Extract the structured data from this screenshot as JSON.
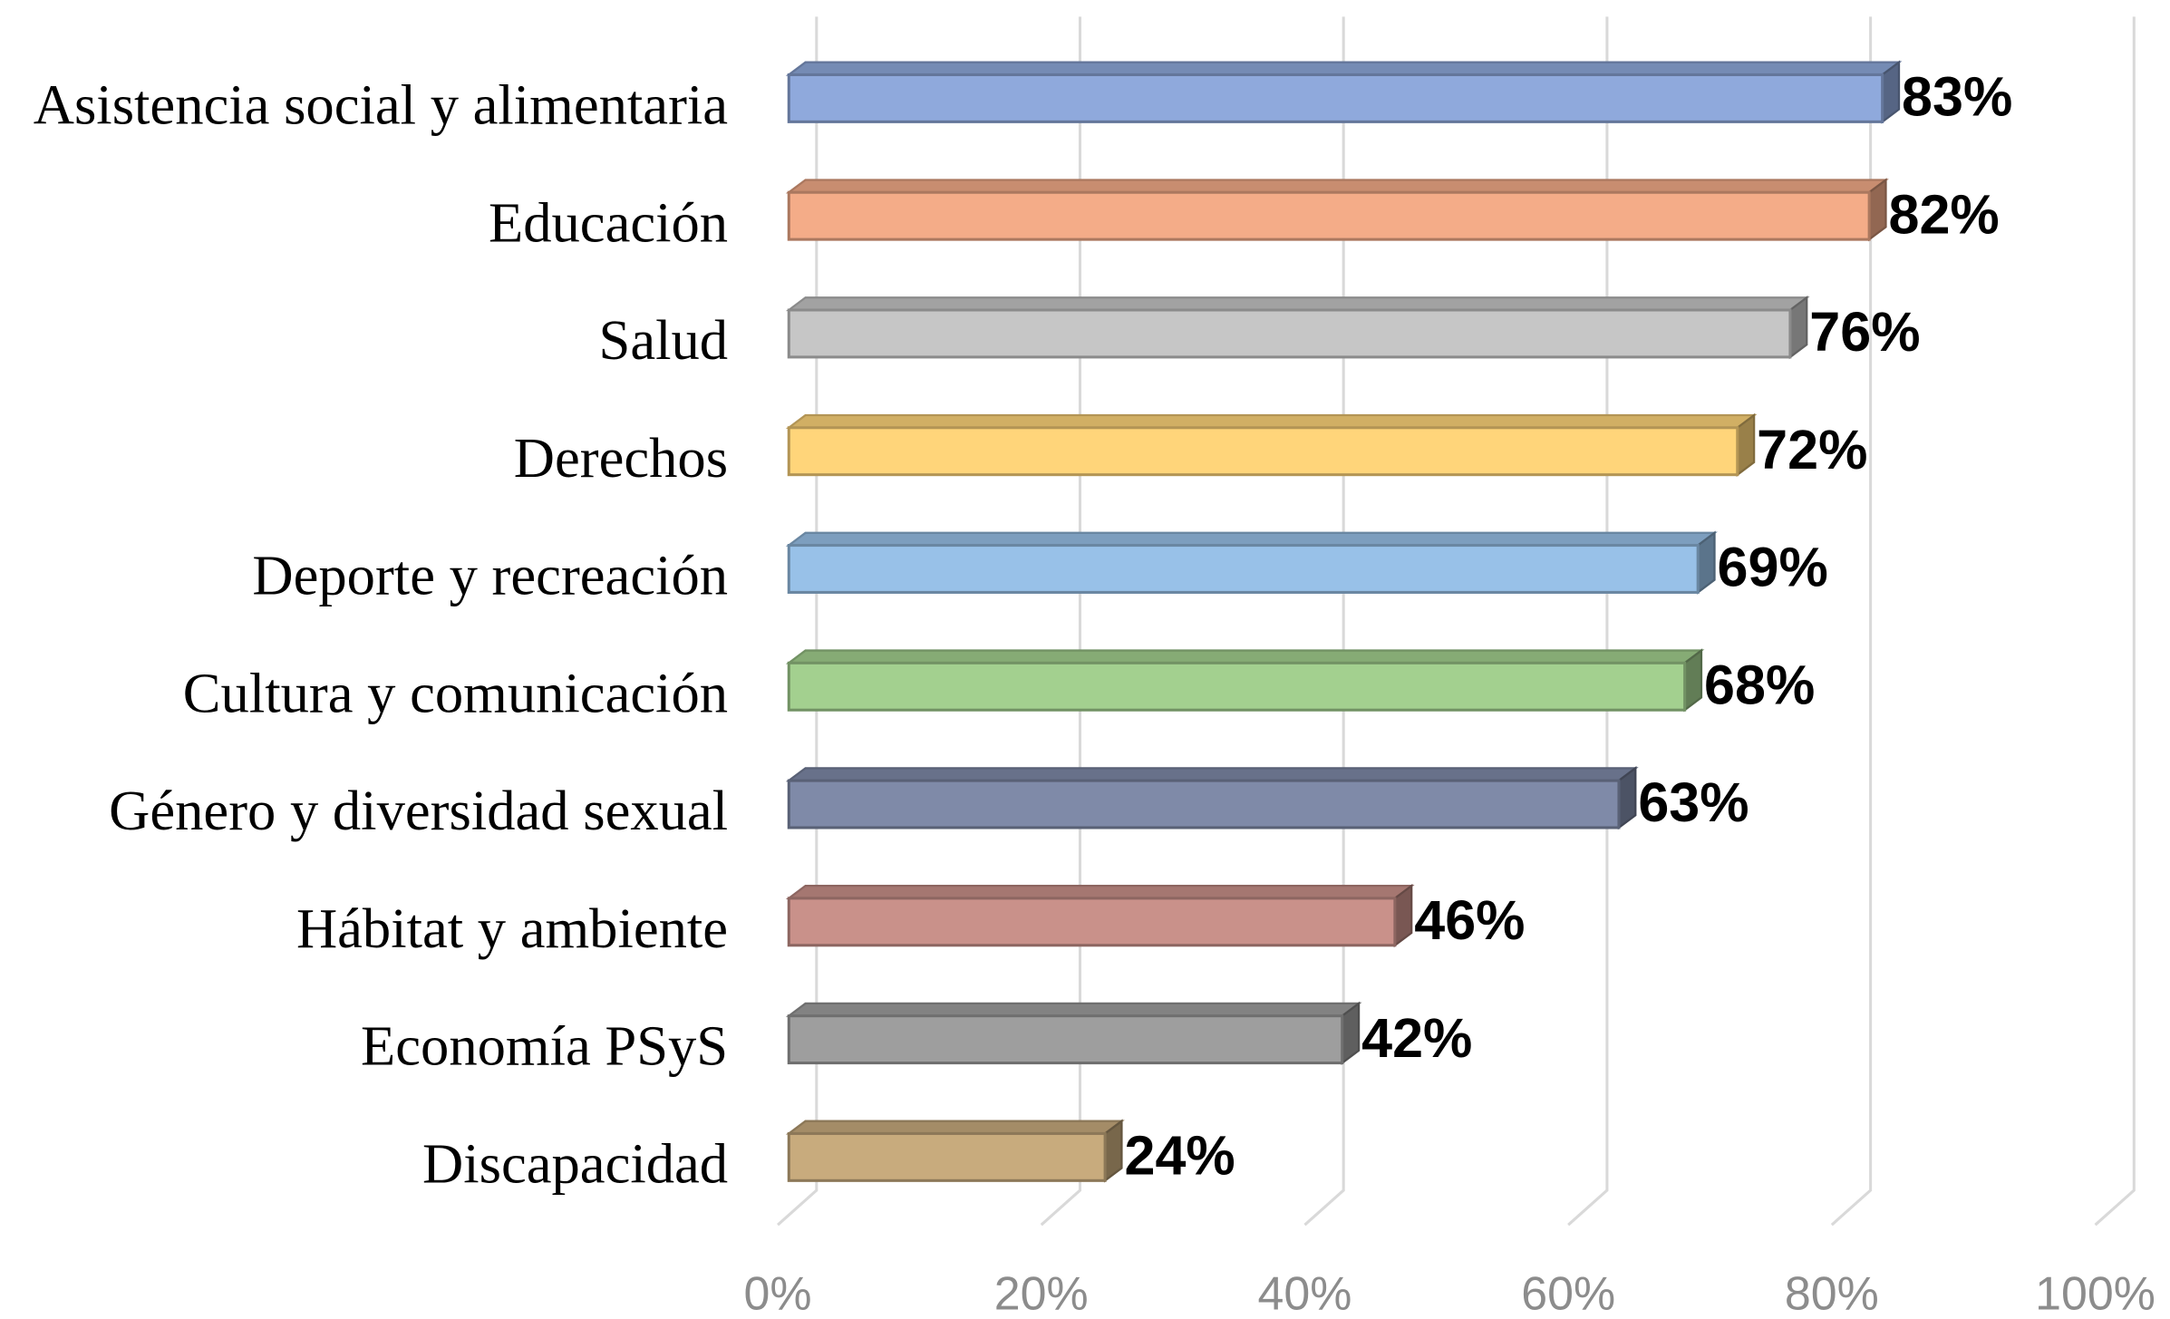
{
  "chart_data": {
    "type": "bar",
    "orientation": "horizontal",
    "three_d": true,
    "categories": [
      "Asistencia social y alimentaria",
      "Educación",
      "Salud",
      "Derechos",
      "Deporte y recreación",
      "Cultura y comunicación",
      "Género y diversidad sexual",
      "Hábitat y ambiente",
      "Economía PSyS",
      "Discapacidad"
    ],
    "values": [
      83,
      82,
      76,
      72,
      69,
      68,
      63,
      46,
      42,
      24
    ],
    "value_labels": [
      "83%",
      "82%",
      "76%",
      "72%",
      "69%",
      "68%",
      "63%",
      "46%",
      "42%",
      "24%"
    ],
    "colors": [
      "#8fa9dc",
      "#f4ac88",
      "#c6c6c6",
      "#ffd57a",
      "#98c1e8",
      "#a3d08f",
      "#7f8aa8",
      "#c9918a",
      "#9e9e9e",
      "#c8ab7d"
    ],
    "xlim": [
      0,
      100
    ],
    "xticks": [
      {
        "value": 0,
        "label": "0%"
      },
      {
        "value": 20,
        "label": "20%"
      },
      {
        "value": 40,
        "label": "40%"
      },
      {
        "value": 60,
        "label": "60%"
      },
      {
        "value": 80,
        "label": "80%"
      },
      {
        "value": 100,
        "label": "100%"
      }
    ],
    "grid": true
  }
}
